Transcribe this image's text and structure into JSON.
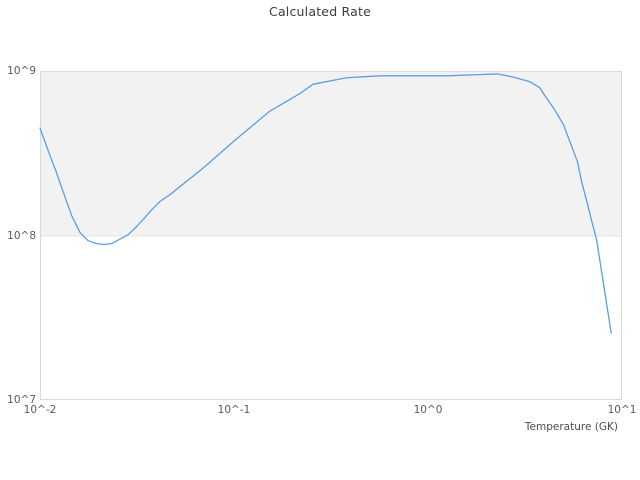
{
  "chart_data": {
    "type": "line",
    "title": "Calculated Rate",
    "xlabel": "Temperature (GK)",
    "ylabel": "",
    "x_scale": "log",
    "y_scale": "log",
    "xlim": [
      0.01,
      10
    ],
    "ylim": [
      10000000.0,
      1000000000.0
    ],
    "grid": "off",
    "legend": "none",
    "x_ticks": [
      {
        "label": "10^-2",
        "value": 0.01
      },
      {
        "label": "10^-1",
        "value": 0.1
      },
      {
        "label": "10^0",
        "value": 1
      },
      {
        "label": "10^1",
        "value": 10
      }
    ],
    "y_ticks": [
      {
        "label": "10^9",
        "value": 1000000000.0
      },
      {
        "label": "10^8",
        "value": 100000000.0
      },
      {
        "label": "10^7",
        "value": 10000000.0
      }
    ],
    "bands": [
      {
        "from": 100000000.0,
        "to": 1000000000.0,
        "color": "#f2f2f2"
      }
    ],
    "series": [
      {
        "name": "rate",
        "color": "#5c9de6",
        "x": [
          0.01,
          0.011,
          0.0121,
          0.0133,
          0.0146,
          0.0161,
          0.0177,
          0.0194,
          0.0214,
          0.0235,
          0.0258,
          0.0284,
          0.0312,
          0.0344,
          0.0378,
          0.0415,
          0.047,
          0.069,
          0.104,
          0.153,
          0.219,
          0.255,
          0.38,
          0.57,
          0.84,
          1.25,
          1.85,
          2.27,
          2.74,
          3.36,
          3.77,
          4.0,
          4.5,
          5.0,
          5.4,
          5.9,
          6.2,
          6.6,
          7.0,
          7.4,
          7.9,
          8.2,
          8.5,
          8.8
        ],
        "y": [
          450000000.0,
          330000000.0,
          245000000.0,
          178000000.0,
          131000000.0,
          104000000.0,
          93000000.0,
          89500000.0,
          88000000.0,
          89500000.0,
          95000000.0,
          101000000.0,
          112000000.0,
          127000000.0,
          144000000.0,
          161000000.0,
          178000000.0,
          256000000.0,
          390000000.0,
          570000000.0,
          730000000.0,
          830000000.0,
          910000000.0,
          935000000.0,
          935000000.0,
          935000000.0,
          950000000.0,
          960000000.0,
          920000000.0,
          860000000.0,
          790000000.0,
          710000000.0,
          580000000.0,
          470000000.0,
          370000000.0,
          280000000.0,
          211000000.0,
          160000000.0,
          121000000.0,
          94000000.0,
          57500000.0,
          43500000.0,
          33000000.0,
          25500000.0
        ]
      }
    ]
  },
  "colors": {
    "background": "#ffffff",
    "plot_border": "#d9d9d9",
    "band_fill": "#f2f2f2",
    "band_edge": "#e6e6e6",
    "line": "#5c9de6",
    "title_text": "#3d3d3d",
    "tick_text": "#595959"
  }
}
